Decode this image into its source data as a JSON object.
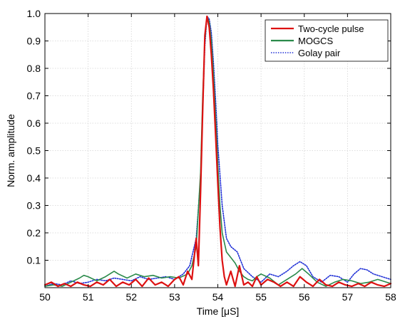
{
  "chart_data": {
    "type": "line",
    "xlabel": "Time [μS]",
    "ylabel": "Norm. amplitude",
    "xlim": [
      50,
      58
    ],
    "ylim": [
      0,
      1.0
    ],
    "x_ticks": [
      "50",
      "51",
      "52",
      "53",
      "54",
      "55",
      "56",
      "57",
      "58"
    ],
    "y_ticks": [
      "0.1",
      "0.2",
      "0.3",
      "0.4",
      "0.5",
      "0.6",
      "0.7",
      "0.8",
      "0.9",
      "1.0"
    ],
    "grid": true,
    "legend_position": "top-right",
    "series": [
      {
        "name": "Two-cycle pulse",
        "color": "#dd1111",
        "style": "solid",
        "x": [
          50.0,
          50.15,
          50.3,
          50.45,
          50.6,
          50.75,
          50.9,
          51.05,
          51.2,
          51.35,
          51.5,
          51.65,
          51.8,
          51.95,
          52.1,
          52.25,
          52.4,
          52.55,
          52.7,
          52.85,
          53.0,
          53.1,
          53.2,
          53.3,
          53.4,
          53.5,
          53.55,
          53.6,
          53.65,
          53.7,
          53.75,
          53.8,
          53.85,
          53.9,
          53.95,
          54.0,
          54.05,
          54.1,
          54.15,
          54.2,
          54.3,
          54.4,
          54.5,
          54.6,
          54.7,
          54.8,
          54.9,
          55.0,
          55.15,
          55.3,
          55.45,
          55.6,
          55.75,
          55.9,
          56.05,
          56.2,
          56.35,
          56.5,
          56.65,
          56.8,
          56.95,
          57.1,
          57.25,
          57.4,
          57.55,
          57.7,
          57.85,
          58.0
        ],
        "y": [
          0.01,
          0.02,
          0.005,
          0.015,
          0.005,
          0.02,
          0.01,
          0.005,
          0.02,
          0.01,
          0.03,
          0.005,
          0.02,
          0.01,
          0.03,
          0.005,
          0.035,
          0.01,
          0.02,
          0.005,
          0.03,
          0.04,
          0.01,
          0.06,
          0.03,
          0.18,
          0.08,
          0.35,
          0.65,
          0.92,
          0.99,
          0.95,
          0.85,
          0.72,
          0.55,
          0.38,
          0.22,
          0.1,
          0.04,
          0.01,
          0.06,
          0.005,
          0.08,
          0.01,
          0.02,
          0.005,
          0.04,
          0.01,
          0.03,
          0.02,
          0.005,
          0.02,
          0.005,
          0.04,
          0.02,
          0.005,
          0.03,
          0.01,
          0.005,
          0.02,
          0.01,
          0.005,
          0.015,
          0.005,
          0.02,
          0.01,
          0.005,
          0.015
        ]
      },
      {
        "name": "MOGCS",
        "color": "#2a8a4a",
        "style": "solid",
        "x": [
          50.0,
          50.2,
          50.4,
          50.6,
          50.8,
          50.9,
          51.0,
          51.2,
          51.4,
          51.6,
          51.7,
          51.9,
          52.1,
          52.3,
          52.5,
          52.7,
          52.9,
          53.1,
          53.3,
          53.4,
          53.5,
          53.6,
          53.65,
          53.7,
          53.75,
          53.8,
          53.85,
          53.9,
          53.95,
          54.0,
          54.05,
          54.1,
          54.2,
          54.3,
          54.4,
          54.5,
          54.6,
          54.7,
          54.8,
          54.9,
          55.0,
          55.2,
          55.4,
          55.6,
          55.8,
          55.95,
          56.1,
          56.3,
          56.5,
          56.7,
          56.9,
          57.1,
          57.3,
          57.5,
          57.7,
          57.9,
          58.0
        ],
        "y": [
          0.005,
          0.01,
          0.005,
          0.02,
          0.035,
          0.045,
          0.04,
          0.025,
          0.04,
          0.06,
          0.05,
          0.035,
          0.05,
          0.04,
          0.045,
          0.035,
          0.04,
          0.035,
          0.05,
          0.08,
          0.15,
          0.42,
          0.7,
          0.9,
          0.99,
          0.97,
          0.9,
          0.78,
          0.62,
          0.45,
          0.3,
          0.2,
          0.13,
          0.11,
          0.09,
          0.06,
          0.04,
          0.03,
          0.025,
          0.04,
          0.05,
          0.035,
          0.01,
          0.03,
          0.05,
          0.07,
          0.05,
          0.02,
          0.005,
          0.02,
          0.03,
          0.025,
          0.015,
          0.02,
          0.03,
          0.02,
          0.015
        ]
      },
      {
        "name": "Golay pair",
        "color": "#1f2fd6",
        "style": "dotted",
        "x": [
          50.0,
          50.2,
          50.4,
          50.6,
          50.8,
          51.0,
          51.2,
          51.4,
          51.6,
          51.8,
          52.0,
          52.2,
          52.4,
          52.6,
          52.8,
          53.0,
          53.2,
          53.35,
          53.5,
          53.6,
          53.65,
          53.7,
          53.75,
          53.8,
          53.85,
          53.9,
          53.95,
          54.0,
          54.1,
          54.2,
          54.3,
          54.45,
          54.6,
          54.8,
          55.0,
          55.2,
          55.4,
          55.6,
          55.75,
          55.9,
          56.05,
          56.2,
          56.4,
          56.6,
          56.8,
          57.0,
          57.15,
          57.3,
          57.45,
          57.6,
          57.8,
          58.0
        ],
        "y": [
          0.005,
          0.015,
          0.01,
          0.025,
          0.015,
          0.02,
          0.03,
          0.025,
          0.035,
          0.03,
          0.025,
          0.04,
          0.03,
          0.035,
          0.04,
          0.03,
          0.05,
          0.08,
          0.18,
          0.4,
          0.65,
          0.88,
          0.99,
          0.98,
          0.93,
          0.82,
          0.68,
          0.52,
          0.3,
          0.18,
          0.15,
          0.13,
          0.07,
          0.04,
          0.02,
          0.05,
          0.04,
          0.06,
          0.08,
          0.095,
          0.08,
          0.04,
          0.02,
          0.045,
          0.04,
          0.02,
          0.05,
          0.07,
          0.065,
          0.05,
          0.04,
          0.03
        ]
      }
    ]
  }
}
